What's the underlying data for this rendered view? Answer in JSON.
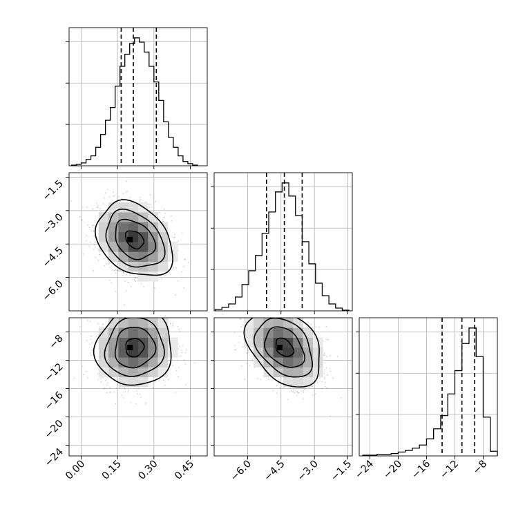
{
  "chart_data": {
    "type": "corner",
    "parameters": [
      {
        "index": 0,
        "ticks": [
          0.0,
          0.15,
          0.3,
          0.45
        ],
        "tick_labels": [
          "0.00",
          "0.15",
          "0.30",
          "0.45"
        ],
        "range": [
          -0.05,
          0.52
        ],
        "quantiles": [
          0.165,
          0.215,
          0.31
        ],
        "histogram": [
          {
            "x": -0.03,
            "c": 1
          },
          {
            "x": -0.01,
            "c": 2
          },
          {
            "x": 0.01,
            "c": 4
          },
          {
            "x": 0.03,
            "c": 9
          },
          {
            "x": 0.05,
            "c": 14
          },
          {
            "x": 0.07,
            "c": 26
          },
          {
            "x": 0.09,
            "c": 44
          },
          {
            "x": 0.11,
            "c": 64
          },
          {
            "x": 0.13,
            "c": 82
          },
          {
            "x": 0.15,
            "c": 112
          },
          {
            "x": 0.17,
            "c": 140
          },
          {
            "x": 0.19,
            "c": 157
          },
          {
            "x": 0.21,
            "c": 172
          },
          {
            "x": 0.23,
            "c": 180
          },
          {
            "x": 0.25,
            "c": 174
          },
          {
            "x": 0.27,
            "c": 160
          },
          {
            "x": 0.29,
            "c": 140
          },
          {
            "x": 0.31,
            "c": 118
          },
          {
            "x": 0.33,
            "c": 92
          },
          {
            "x": 0.35,
            "c": 62
          },
          {
            "x": 0.37,
            "c": 40
          },
          {
            "x": 0.39,
            "c": 26
          },
          {
            "x": 0.41,
            "c": 14
          },
          {
            "x": 0.43,
            "c": 6
          },
          {
            "x": 0.45,
            "c": 3
          },
          {
            "x": 0.47,
            "c": 1
          }
        ]
      },
      {
        "index": 1,
        "ticks": [
          -6.0,
          -4.5,
          -3.0,
          -1.5
        ],
        "tick_labels": [
          "−6.0",
          "−4.5",
          "−3.0",
          "−1.5"
        ],
        "range": [
          -7.5,
          -1.3
        ],
        "quantiles": [
          -5.15,
          -4.35,
          -3.55
        ],
        "histogram": [
          {
            "x": -7.3,
            "c": 2
          },
          {
            "x": -7.0,
            "c": 5
          },
          {
            "x": -6.7,
            "c": 10
          },
          {
            "x": -6.4,
            "c": 20
          },
          {
            "x": -6.1,
            "c": 38
          },
          {
            "x": -5.8,
            "c": 58
          },
          {
            "x": -5.5,
            "c": 80
          },
          {
            "x": -5.2,
            "c": 112
          },
          {
            "x": -4.9,
            "c": 143
          },
          {
            "x": -4.6,
            "c": 172
          },
          {
            "x": -4.3,
            "c": 185
          },
          {
            "x": -4.0,
            "c": 166
          },
          {
            "x": -3.7,
            "c": 138
          },
          {
            "x": -3.4,
            "c": 100
          },
          {
            "x": -3.1,
            "c": 68
          },
          {
            "x": -2.8,
            "c": 40
          },
          {
            "x": -2.5,
            "c": 22
          },
          {
            "x": -2.2,
            "c": 10
          },
          {
            "x": -1.9,
            "c": 4
          },
          {
            "x": -1.6,
            "c": 1
          }
        ]
      },
      {
        "index": 2,
        "ticks": [
          -24,
          -20,
          -16,
          -12,
          -8
        ],
        "tick_labels": [
          "−24",
          "−20",
          "−16",
          "−12",
          "−8"
        ],
        "range": [
          -25.5,
          -6.0
        ],
        "quantiles": [
          -13.8,
          -11.0,
          -9.2
        ],
        "histogram": [
          {
            "x": -24.5,
            "c": 1
          },
          {
            "x": -23.5,
            "c": 1
          },
          {
            "x": -22.5,
            "c": 2
          },
          {
            "x": -21.5,
            "c": 2
          },
          {
            "x": -20.5,
            "c": 3
          },
          {
            "x": -19.5,
            "c": 5
          },
          {
            "x": -18.5,
            "c": 7
          },
          {
            "x": -17.5,
            "c": 10
          },
          {
            "x": -16.5,
            "c": 14
          },
          {
            "x": -15.5,
            "c": 22
          },
          {
            "x": -14.5,
            "c": 35
          },
          {
            "x": -13.5,
            "c": 52
          },
          {
            "x": -12.5,
            "c": 80
          },
          {
            "x": -11.5,
            "c": 110
          },
          {
            "x": -10.5,
            "c": 145
          },
          {
            "x": -9.5,
            "c": 165
          },
          {
            "x": -8.5,
            "c": 128
          },
          {
            "x": -7.5,
            "c": 50
          },
          {
            "x": -6.5,
            "c": 6
          }
        ]
      }
    ],
    "pairs": [
      {
        "x": 0,
        "y": 1,
        "mean": [
          0.22,
          -4.3
        ],
        "sd": [
          0.075,
          0.8
        ],
        "rho": -0.3,
        "contour_levels": [
          0.5,
          1.1,
          1.6,
          2.1
        ],
        "peak_offset": [
          0.035,
          -0.05
        ]
      },
      {
        "x": 0,
        "y": 2,
        "mean": [
          0.22,
          -10.2
        ],
        "sd": [
          0.075,
          2.6
        ],
        "rho": 0.05,
        "contour_levels": [
          0.5,
          1.1,
          1.6,
          2.1
        ],
        "peak_offset": [
          0.0,
          0.0
        ]
      },
      {
        "x": 1,
        "y": 2,
        "mean": [
          -4.35,
          -10.2
        ],
        "sd": [
          0.8,
          2.6
        ],
        "rho": -0.35,
        "contour_levels": [
          0.5,
          1.1,
          1.6,
          2.1
        ],
        "peak_offset": [
          0.0,
          0.0
        ]
      }
    ],
    "grid": true,
    "quantiles_shown": [
      0.16,
      0.5,
      0.84
    ],
    "line_color": "#000000",
    "grid_color": "#b0b0b0",
    "scatter_color": "#7f7f7f"
  }
}
